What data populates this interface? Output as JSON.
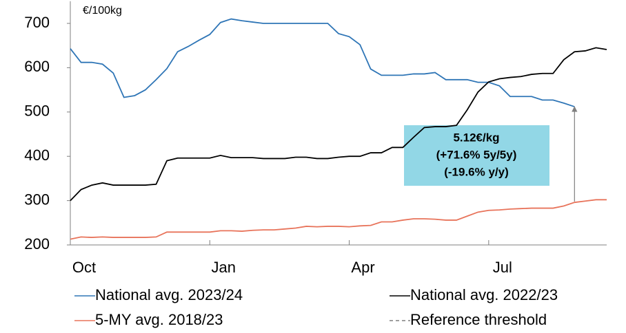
{
  "chart_data": {
    "type": "line",
    "y_unit_label": "€/100kg",
    "xlim": [
      0,
      50
    ],
    "xticks": [
      {
        "value": 0,
        "label": "Oct"
      },
      {
        "value": 13,
        "label": "Jan"
      },
      {
        "value": 26,
        "label": "Apr"
      },
      {
        "value": 39,
        "label": "Jul"
      }
    ],
    "ylim": [
      200,
      750
    ],
    "yticks": [
      200,
      300,
      400,
      500,
      600,
      700
    ],
    "grid": false,
    "legend": "bottom",
    "series": [
      {
        "name": "National avg. 2023/24",
        "color": "#2e75b6",
        "x": [
          0,
          1,
          2,
          3,
          4,
          5,
          6,
          7,
          8,
          9,
          10,
          11,
          12,
          13,
          14,
          15,
          16,
          17,
          18,
          19,
          20,
          21,
          22,
          23,
          24,
          25,
          26,
          27,
          28,
          29,
          30,
          31,
          32,
          33,
          34,
          35,
          36,
          37,
          38,
          39,
          40,
          41,
          42,
          43,
          44,
          45,
          46,
          47
        ],
        "values": [
          643,
          612,
          612,
          608,
          588,
          533,
          537,
          550,
          573,
          598,
          636,
          648,
          662,
          675,
          702,
          710,
          706,
          703,
          700,
          700,
          700,
          700,
          700,
          700,
          700,
          677,
          670,
          652,
          597,
          583,
          583,
          583,
          586,
          586,
          589,
          573,
          573,
          573,
          567,
          567,
          559,
          535,
          535,
          535,
          527,
          527,
          520,
          512
        ]
      },
      {
        "name": "National avg. 2022/23",
        "color": "#000000",
        "x": [
          0,
          1,
          2,
          3,
          4,
          5,
          6,
          7,
          8,
          9,
          10,
          11,
          12,
          13,
          14,
          15,
          16,
          17,
          18,
          19,
          20,
          21,
          22,
          23,
          24,
          25,
          26,
          27,
          28,
          29,
          30,
          31,
          32,
          33,
          34,
          35,
          36,
          37,
          38,
          39,
          40,
          41,
          42,
          43,
          44,
          45,
          46,
          47,
          48,
          49,
          50
        ],
        "values": [
          300,
          325,
          335,
          340,
          335,
          335,
          335,
          335,
          337,
          390,
          396,
          396,
          396,
          396,
          402,
          397,
          397,
          397,
          395,
          395,
          395,
          398,
          398,
          395,
          395,
          398,
          400,
          400,
          408,
          408,
          420,
          420,
          443,
          465,
          467,
          467,
          470,
          505,
          545,
          568,
          575,
          578,
          580,
          585,
          587,
          587,
          618,
          636,
          638,
          645,
          641
        ]
      },
      {
        "name": "5-MY avg. 2018/23",
        "color": "#e8735a",
        "x": [
          0,
          1,
          2,
          3,
          4,
          5,
          6,
          7,
          8,
          9,
          10,
          11,
          12,
          13,
          14,
          15,
          16,
          17,
          18,
          19,
          20,
          21,
          22,
          23,
          24,
          25,
          26,
          27,
          28,
          29,
          30,
          31,
          32,
          33,
          34,
          35,
          36,
          37,
          38,
          39,
          40,
          41,
          42,
          43,
          44,
          45,
          46,
          47,
          48,
          49,
          50
        ],
        "values": [
          213,
          218,
          217,
          218,
          217,
          217,
          217,
          217,
          218,
          229,
          229,
          229,
          229,
          229,
          232,
          232,
          231,
          233,
          234,
          234,
          236,
          238,
          242,
          241,
          242,
          242,
          241,
          243,
          244,
          252,
          252,
          256,
          259,
          259,
          258,
          256,
          256,
          265,
          274,
          278,
          279,
          281,
          282,
          283,
          283,
          283,
          288,
          296,
          299,
          302,
          302
        ]
      },
      {
        "name": "Reference threshold",
        "color": "#7f7f7f",
        "dash": true,
        "x": [
          47,
          47
        ],
        "values": [
          298,
          512
        ]
      }
    ],
    "annotation": {
      "lines": [
        "5.12€/kg",
        "(+71.6% 5y/5y)",
        "(-19.6% y/y)"
      ],
      "color": "#92d7e6"
    }
  }
}
